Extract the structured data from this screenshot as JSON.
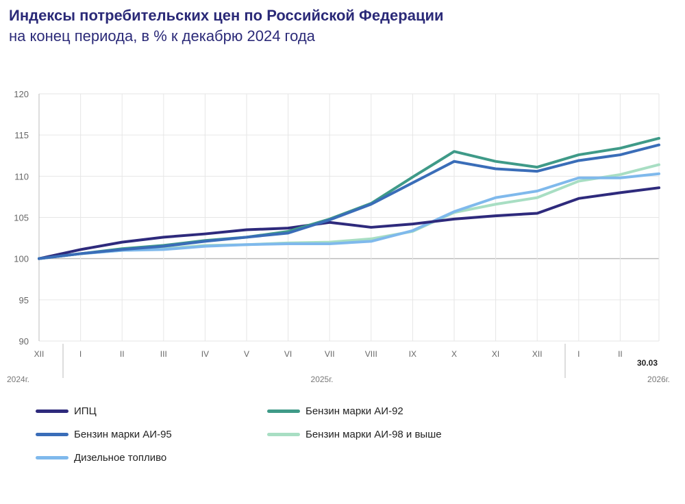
{
  "header": {
    "title": "Индексы потребительских цен по Российской Федерации",
    "subtitle": "на конец периода, в % к декабрю 2024 года"
  },
  "chart_data": {
    "type": "line",
    "categories": [
      "XII",
      "I",
      "II",
      "III",
      "IV",
      "V",
      "VI",
      "VII",
      "VIII",
      "IX",
      "X",
      "XI",
      "XII",
      "I",
      "II",
      "30.03"
    ],
    "year_labels": [
      "2024г.",
      "2025г.",
      "2026г."
    ],
    "ylim": [
      90,
      120
    ],
    "yticks": [
      90,
      95,
      100,
      105,
      110,
      115,
      120
    ],
    "grid": true,
    "legend_placement": "bottom",
    "series": [
      {
        "name": "ИПЦ",
        "color": "#2e2a7c",
        "values": [
          100,
          101.1,
          102.0,
          102.6,
          103.0,
          103.5,
          103.7,
          104.4,
          103.8,
          104.2,
          104.8,
          105.2,
          105.5,
          107.3,
          108.0,
          108.6
        ]
      },
      {
        "name": "Бензин марки АИ-92",
        "color": "#3f9a88",
        "values": [
          100,
          100.6,
          101.2,
          101.6,
          102.2,
          102.6,
          103.3,
          104.8,
          106.7,
          109.9,
          113.0,
          111.8,
          111.1,
          112.6,
          113.4,
          114.6
        ]
      },
      {
        "name": "Бензин марки АИ-95",
        "color": "#3a6db8",
        "values": [
          100,
          100.6,
          101.1,
          101.5,
          102.1,
          102.6,
          103.1,
          104.7,
          106.6,
          109.2,
          111.8,
          110.9,
          110.6,
          111.9,
          112.6,
          113.8
        ]
      },
      {
        "name": "Бензин марки АИ-98 и выше",
        "color": "#a8dec3",
        "values": [
          100,
          100.6,
          101.0,
          101.2,
          101.6,
          101.7,
          101.9,
          102.0,
          102.4,
          103.3,
          105.6,
          106.6,
          107.4,
          109.4,
          110.2,
          111.4
        ]
      },
      {
        "name": "Дизельное топливо",
        "color": "#7fb9ec",
        "values": [
          100,
          100.6,
          101.0,
          101.1,
          101.5,
          101.7,
          101.8,
          101.8,
          102.1,
          103.4,
          105.7,
          107.4,
          108.2,
          109.8,
          109.8,
          110.3
        ]
      }
    ]
  }
}
